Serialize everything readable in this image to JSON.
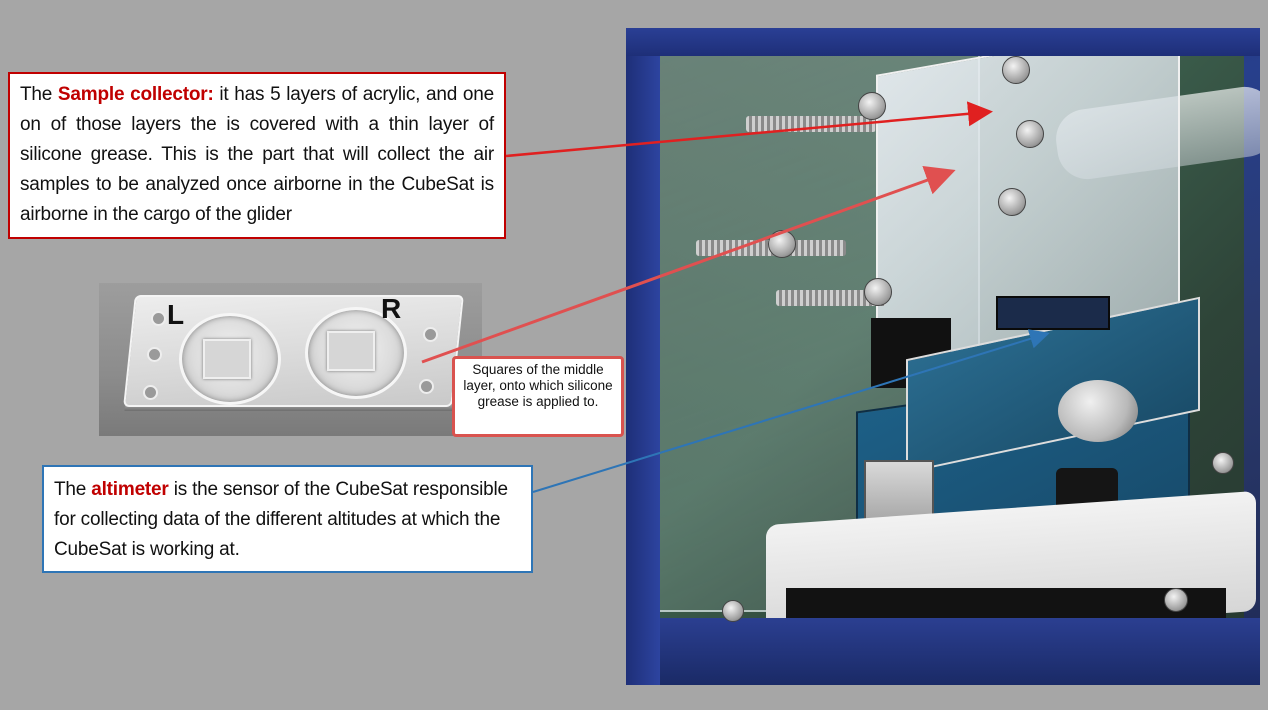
{
  "callouts": {
    "sample_collector": {
      "prefix": "The ",
      "highlight": "Sample collector:",
      "body": " it has 5 layers of acrylic, and one on of those layers the is covered with a thin layer of silicone grease. This is the part that will collect the air samples to be analyzed once airborne in the CubeSat is airborne in the cargo of the glider"
    },
    "altimeter": {
      "prefix": "The ",
      "highlight": "altimeter",
      "body": " is the sensor of the CubeSat responsible for collecting data of the different altitudes at which the CubeSat is working at."
    },
    "squares": {
      "text": "Squares of the middle layer, onto which silicone grease is applied to."
    }
  },
  "photo_labels": {
    "left": "L",
    "right": "R"
  },
  "colors": {
    "background": "#a6a6a6",
    "highlight_red": "#c00000",
    "callout_blue": "#2e75b6",
    "arrow_red": "#e02020",
    "arrow_red_light": "#e05050",
    "arrow_blue": "#2e75b6"
  }
}
